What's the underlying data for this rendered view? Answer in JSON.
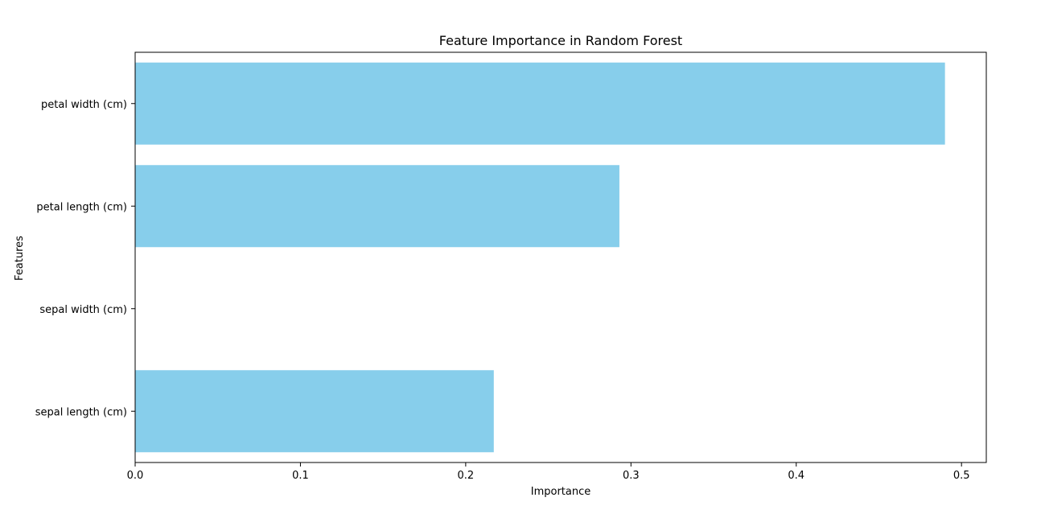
{
  "chart_data": {
    "type": "bar",
    "orientation": "horizontal",
    "title": "Feature Importance in Random Forest",
    "xlabel": "Importance",
    "ylabel": "Features",
    "categories": [
      "petal width (cm)",
      "petal length (cm)",
      "sepal width (cm)",
      "sepal length (cm)"
    ],
    "values": [
      0.49,
      0.293,
      0.0,
      0.217
    ],
    "xlim": [
      0,
      0.515
    ],
    "xticks": [
      0.0,
      0.1,
      0.2,
      0.3,
      0.4,
      0.5
    ],
    "xtick_labels": [
      "0.0",
      "0.1",
      "0.2",
      "0.3",
      "0.4",
      "0.5"
    ],
    "bar_color": "#87ceeb",
    "grid": false,
    "legend": "none"
  }
}
